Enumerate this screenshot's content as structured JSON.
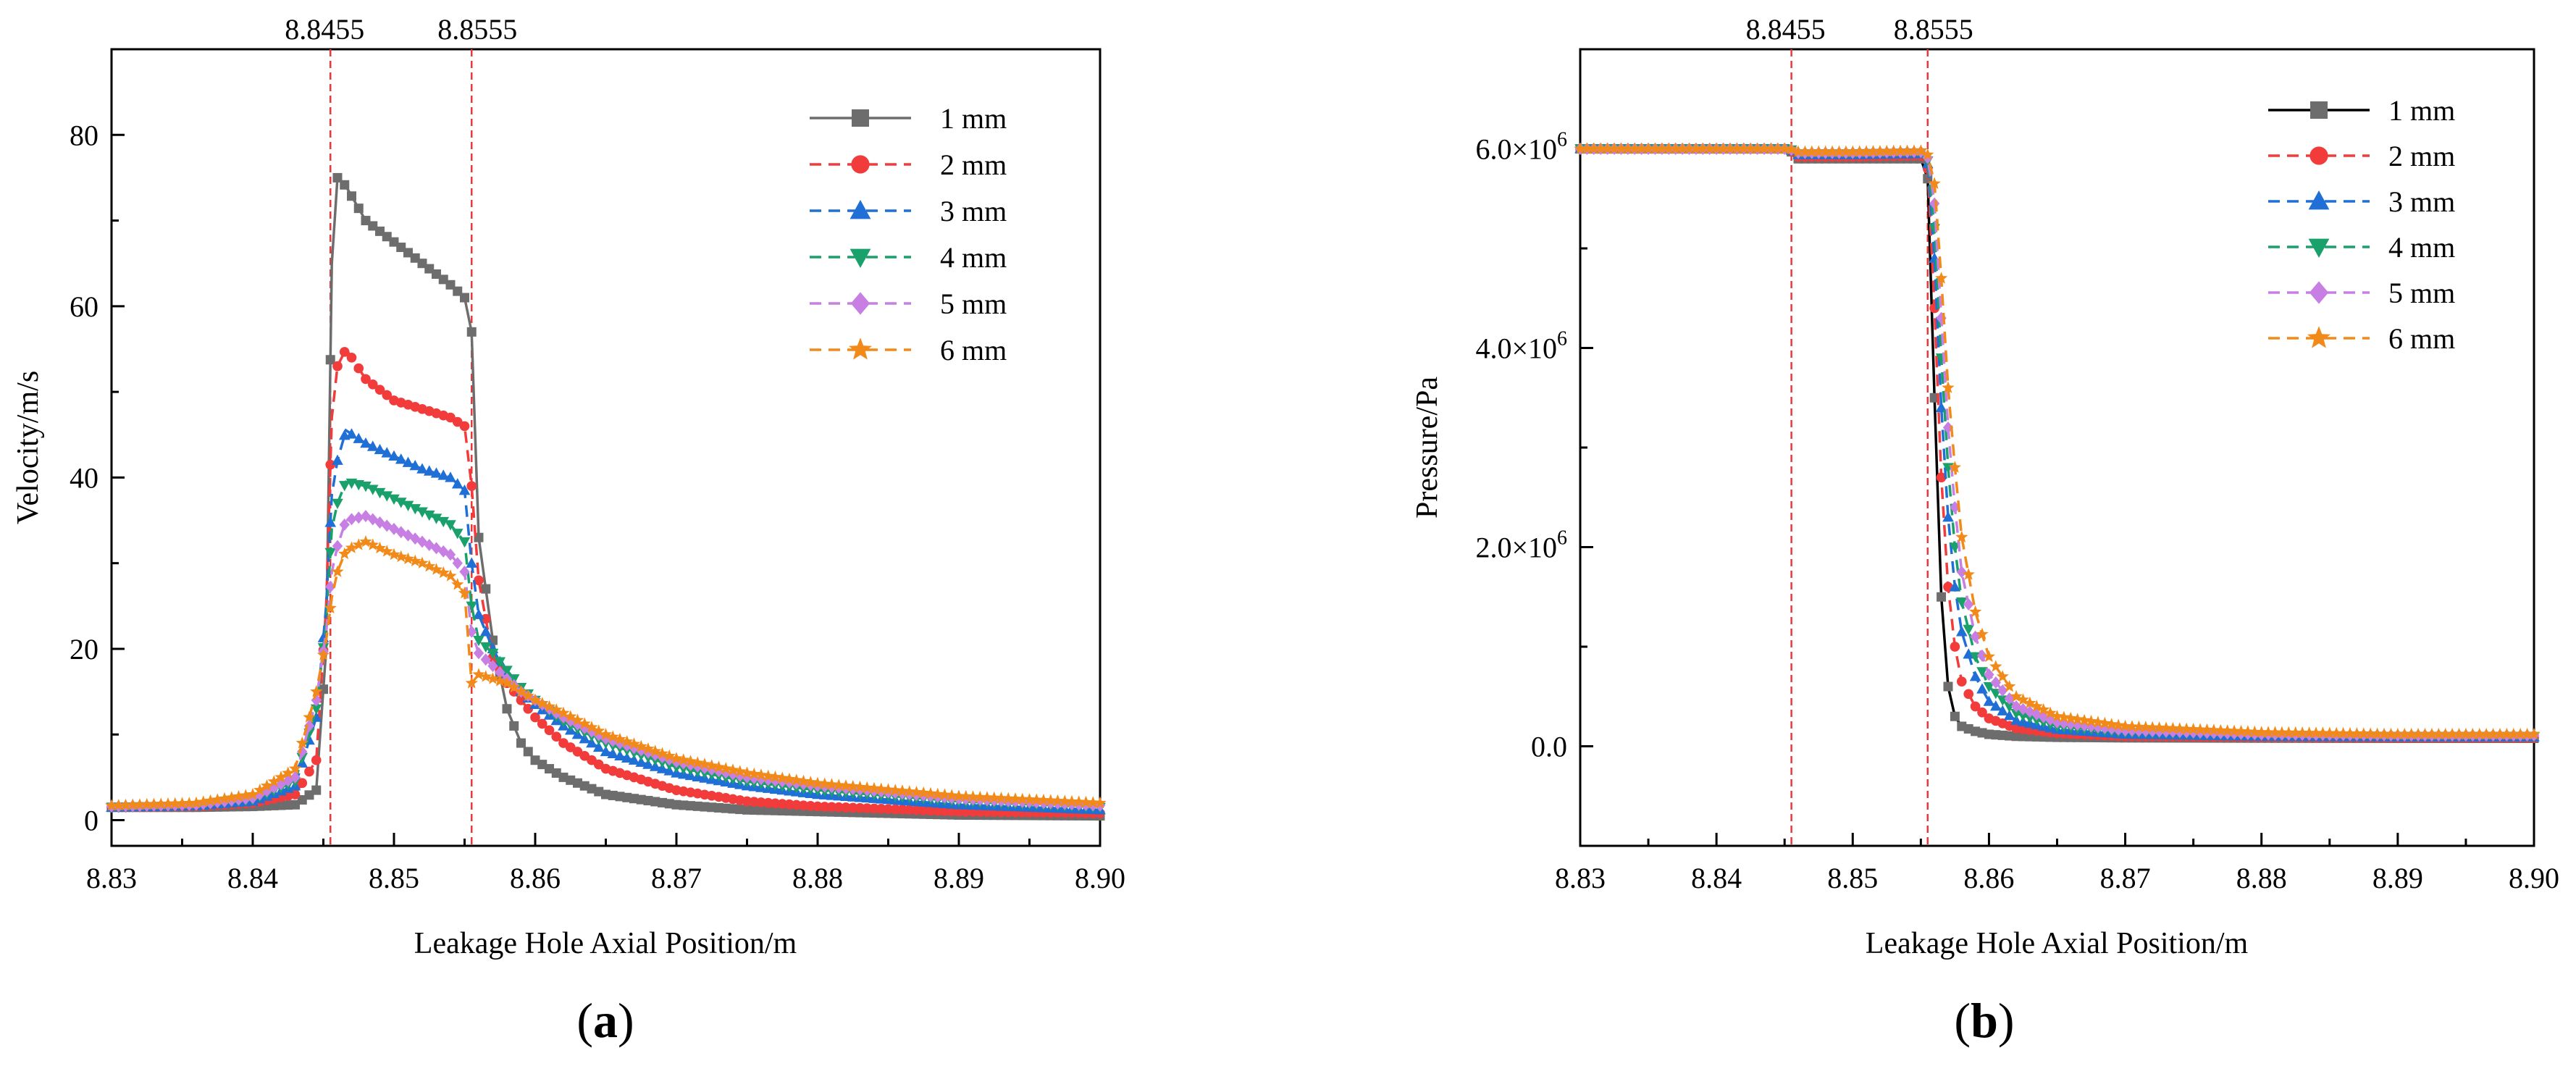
{
  "chart_data": [
    {
      "type": "line",
      "panel": "a",
      "panel_label_open": "(",
      "panel_label_letter": "a",
      "panel_label_close": ")",
      "xlabel": "Leakage Hole Axial Position/m",
      "ylabel": "Velocity/m/s",
      "xlim": [
        8.83,
        8.9
      ],
      "ylim": [
        -3,
        90
      ],
      "xticks": [
        8.83,
        8.84,
        8.85,
        8.86,
        8.87,
        8.88,
        8.89,
        8.9
      ],
      "xtick_labels": [
        "8.83",
        "8.84",
        "8.85",
        "8.86",
        "8.87",
        "8.88",
        "8.89",
        "8.90"
      ],
      "yticks": [
        0,
        20,
        40,
        60,
        80
      ],
      "ytick_labels": [
        "0",
        "20",
        "40",
        "60",
        "80"
      ],
      "vlines": [
        8.8455,
        8.8555
      ],
      "vline_labels": [
        "8.8455",
        "8.8555"
      ],
      "legend_position": "top-right",
      "series": [
        {
          "name": "1 mm",
          "color": "#6d6d6d",
          "dash": "solid",
          "marker": "square",
          "x": [
            8.83,
            8.836,
            8.84,
            8.843,
            8.8445,
            8.8452,
            8.8456,
            8.846,
            8.8466,
            8.848,
            8.85,
            8.852,
            8.854,
            8.855,
            8.8555,
            8.856,
            8.857,
            8.858,
            8.859,
            8.86,
            8.862,
            8.865,
            8.87,
            8.875,
            8.88,
            8.89,
            8.9
          ],
          "y": [
            1.5,
            1.5,
            1.6,
            1.8,
            3.5,
            20,
            65,
            75,
            74,
            70,
            67.5,
            65,
            62.5,
            61,
            57,
            33,
            21,
            13,
            9,
            7,
            5,
            3,
            1.8,
            1.2,
            1.0,
            0.6,
            0.5
          ]
        },
        {
          "name": "2 mm",
          "color": "#f23b3b",
          "dash": "dashed",
          "marker": "circle",
          "x": [
            8.83,
            8.836,
            8.84,
            8.843,
            8.8445,
            8.8452,
            8.8456,
            8.846,
            8.8466,
            8.848,
            8.85,
            8.852,
            8.854,
            8.855,
            8.8555,
            8.856,
            8.857,
            8.858,
            8.859,
            8.86,
            8.862,
            8.865,
            8.87,
            8.875,
            8.88,
            8.89,
            8.9
          ],
          "y": [
            1.5,
            1.6,
            2.0,
            3.0,
            7,
            25,
            47,
            53,
            55,
            51.5,
            49,
            48,
            47,
            46,
            39,
            28,
            19,
            16,
            14,
            12,
            9,
            6,
            3.5,
            2.2,
            1.6,
            1.0,
            0.8
          ]
        },
        {
          "name": "3 mm",
          "color": "#1f6fd6",
          "dash": "dashed",
          "marker": "triangle-up",
          "x": [
            8.83,
            8.836,
            8.84,
            8.843,
            8.8445,
            8.8452,
            8.8456,
            8.846,
            8.8466,
            8.848,
            8.85,
            8.852,
            8.854,
            8.855,
            8.8555,
            8.856,
            8.857,
            8.858,
            8.859,
            8.86,
            8.862,
            8.865,
            8.87,
            8.875,
            8.88,
            8.89,
            8.9
          ],
          "y": [
            1.5,
            1.7,
            2.2,
            4.0,
            12,
            25,
            38,
            42,
            45.5,
            44,
            42.5,
            41,
            40,
            38.5,
            30,
            24,
            20,
            17,
            15,
            13.5,
            11,
            8,
            5.5,
            4,
            3,
            1.8,
            1.2
          ]
        },
        {
          "name": "4 mm",
          "color": "#1aa06b",
          "dash": "dashed",
          "marker": "triangle-down",
          "x": [
            8.83,
            8.836,
            8.84,
            8.843,
            8.8445,
            8.8452,
            8.8456,
            8.846,
            8.8466,
            8.848,
            8.85,
            8.852,
            8.854,
            8.855,
            8.8555,
            8.856,
            8.857,
            8.858,
            8.859,
            8.86,
            8.862,
            8.865,
            8.87,
            8.875,
            8.88,
            8.89,
            8.9
          ],
          "y": [
            1.5,
            1.7,
            2.4,
            4.5,
            13,
            23,
            34,
            37,
            39.5,
            39,
            37.5,
            36,
            34.5,
            32.5,
            25,
            21,
            19.5,
            17.5,
            15.5,
            14,
            11.5,
            9,
            6.2,
            4.5,
            3.5,
            2.2,
            1.5
          ]
        },
        {
          "name": "5 mm",
          "color": "#c77fe3",
          "dash": "dashed",
          "marker": "diamond",
          "x": [
            8.83,
            8.836,
            8.84,
            8.843,
            8.8445,
            8.8452,
            8.8456,
            8.846,
            8.8466,
            8.848,
            8.85,
            8.852,
            8.854,
            8.855,
            8.8555,
            8.856,
            8.857,
            8.858,
            8.859,
            8.86,
            8.862,
            8.865,
            8.87,
            8.875,
            8.88,
            8.89,
            8.9
          ],
          "y": [
            1.6,
            1.8,
            2.6,
            5.0,
            14,
            22,
            29,
            32,
            35,
            35.5,
            34,
            32.5,
            31,
            29,
            22,
            19.5,
            18,
            16.5,
            15,
            14,
            12,
            9.5,
            6.8,
            5,
            4,
            2.5,
            1.7
          ]
        },
        {
          "name": "6 mm",
          "color": "#f28a1a",
          "dash": "dashed",
          "marker": "star",
          "x": [
            8.83,
            8.836,
            8.84,
            8.843,
            8.8445,
            8.8452,
            8.8456,
            8.846,
            8.8466,
            8.848,
            8.85,
            8.852,
            8.854,
            8.855,
            8.8555,
            8.856,
            8.857,
            8.858,
            8.859,
            8.86,
            8.862,
            8.865,
            8.87,
            8.875,
            8.88,
            8.89,
            8.9
          ],
          "y": [
            1.7,
            2.0,
            3.0,
            6.0,
            15,
            21,
            26,
            29,
            31.5,
            32.5,
            31,
            30,
            28.5,
            26.5,
            16,
            17,
            16.5,
            16,
            15,
            14,
            12.5,
            10,
            7.2,
            5.5,
            4.3,
            2.8,
            2.0
          ]
        }
      ]
    },
    {
      "type": "line",
      "panel": "b",
      "panel_label_open": "(",
      "panel_label_letter": "b",
      "panel_label_close": ")",
      "xlabel": "Leakage Hole Axial Position/m",
      "ylabel": "Pressure/Pa",
      "xlim": [
        8.83,
        8.9
      ],
      "ylim": [
        -1000000,
        7000000
      ],
      "xticks": [
        8.83,
        8.84,
        8.85,
        8.86,
        8.87,
        8.88,
        8.89,
        8.9
      ],
      "xtick_labels": [
        "8.83",
        "8.84",
        "8.85",
        "8.86",
        "8.87",
        "8.88",
        "8.89",
        "8.90"
      ],
      "yticks": [
        0,
        2000000,
        4000000,
        6000000
      ],
      "ytick_mantissa": [
        "0.0",
        "2.0×10",
        "4.0×10",
        "6.0×10"
      ],
      "ytick_exponent": [
        "",
        "6",
        "6",
        "6"
      ],
      "vlines": [
        8.8455,
        8.8555
      ],
      "vline_labels": [
        "8.8455",
        "8.8555"
      ],
      "legend_position": "top-right",
      "series": [
        {
          "name": "1 mm",
          "color": "#000000",
          "marker_color": "#6d6d6d",
          "dash": "solid",
          "marker": "square",
          "x": [
            8.83,
            8.845,
            8.8455,
            8.8458,
            8.85,
            8.855,
            8.8555,
            8.856,
            8.8565,
            8.857,
            8.8575,
            8.858,
            8.859,
            8.86,
            8.862,
            8.865,
            8.87,
            8.88,
            8.89,
            8.9
          ],
          "y": [
            6000000,
            6000000,
            5970000,
            5900000,
            5900000,
            5900000,
            5700000,
            3500000,
            1500000,
            600000,
            300000,
            200000,
            150000,
            120000,
            100000,
            90000,
            85000,
            82000,
            80000,
            80000
          ]
        },
        {
          "name": "2 mm",
          "color": "#f23b3b",
          "dash": "dashed",
          "marker": "circle",
          "x": [
            8.83,
            8.845,
            8.8455,
            8.8458,
            8.85,
            8.855,
            8.8555,
            8.856,
            8.8565,
            8.857,
            8.8575,
            8.858,
            8.859,
            8.86,
            8.862,
            8.865,
            8.87,
            8.88,
            8.89,
            8.9
          ],
          "y": [
            6000000,
            6000000,
            5980000,
            5920000,
            5920000,
            5930000,
            5800000,
            4400000,
            2700000,
            1600000,
            1000000,
            650000,
            400000,
            280000,
            180000,
            130000,
            100000,
            90000,
            85000,
            85000
          ]
        },
        {
          "name": "3 mm",
          "color": "#1f6fd6",
          "dash": "dashed",
          "marker": "triangle-up",
          "x": [
            8.83,
            8.845,
            8.8455,
            8.8458,
            8.85,
            8.855,
            8.8555,
            8.856,
            8.8565,
            8.857,
            8.8575,
            8.858,
            8.859,
            8.86,
            8.862,
            8.865,
            8.87,
            8.88,
            8.89,
            8.9
          ],
          "y": [
            6000000,
            6000000,
            5985000,
            5940000,
            5940000,
            5950000,
            5850000,
            4900000,
            3400000,
            2300000,
            1600000,
            1150000,
            700000,
            450000,
            260000,
            170000,
            120000,
            100000,
            95000,
            95000
          ]
        },
        {
          "name": "4 mm",
          "color": "#1aa06b",
          "dash": "dashed",
          "marker": "triangle-down",
          "x": [
            8.83,
            8.845,
            8.8455,
            8.8458,
            8.85,
            8.855,
            8.8555,
            8.856,
            8.8565,
            8.857,
            8.8575,
            8.858,
            8.859,
            8.86,
            8.862,
            8.865,
            8.87,
            8.88,
            8.89,
            8.9
          ],
          "y": [
            6000000,
            6000000,
            5990000,
            5950000,
            5950000,
            5960000,
            5880000,
            5200000,
            3900000,
            2800000,
            2000000,
            1450000,
            900000,
            600000,
            330000,
            200000,
            140000,
            110000,
            100000,
            100000
          ]
        },
        {
          "name": "5 mm",
          "color": "#c77fe3",
          "dash": "dashed",
          "marker": "diamond",
          "x": [
            8.83,
            8.845,
            8.8455,
            8.8458,
            8.85,
            8.855,
            8.8555,
            8.856,
            8.8565,
            8.857,
            8.8575,
            8.858,
            8.859,
            8.86,
            8.862,
            8.865,
            8.87,
            8.88,
            8.89,
            8.9
          ],
          "y": [
            6000000,
            6000000,
            5990000,
            5960000,
            5960000,
            5970000,
            5910000,
            5450000,
            4300000,
            3200000,
            2400000,
            1750000,
            1100000,
            720000,
            400000,
            240000,
            160000,
            120000,
            110000,
            110000
          ]
        },
        {
          "name": "6 mm",
          "color": "#f28a1a",
          "dash": "dashed",
          "marker": "star",
          "x": [
            8.83,
            8.845,
            8.8455,
            8.8458,
            8.85,
            8.855,
            8.8555,
            8.856,
            8.8565,
            8.857,
            8.8575,
            8.858,
            8.859,
            8.86,
            8.862,
            8.865,
            8.87,
            8.88,
            8.89,
            8.9
          ],
          "y": [
            6000000,
            6000000,
            5995000,
            5970000,
            5970000,
            5980000,
            5940000,
            5650000,
            4700000,
            3600000,
            2800000,
            2100000,
            1350000,
            900000,
            500000,
            300000,
            200000,
            140000,
            120000,
            120000
          ]
        }
      ]
    }
  ]
}
